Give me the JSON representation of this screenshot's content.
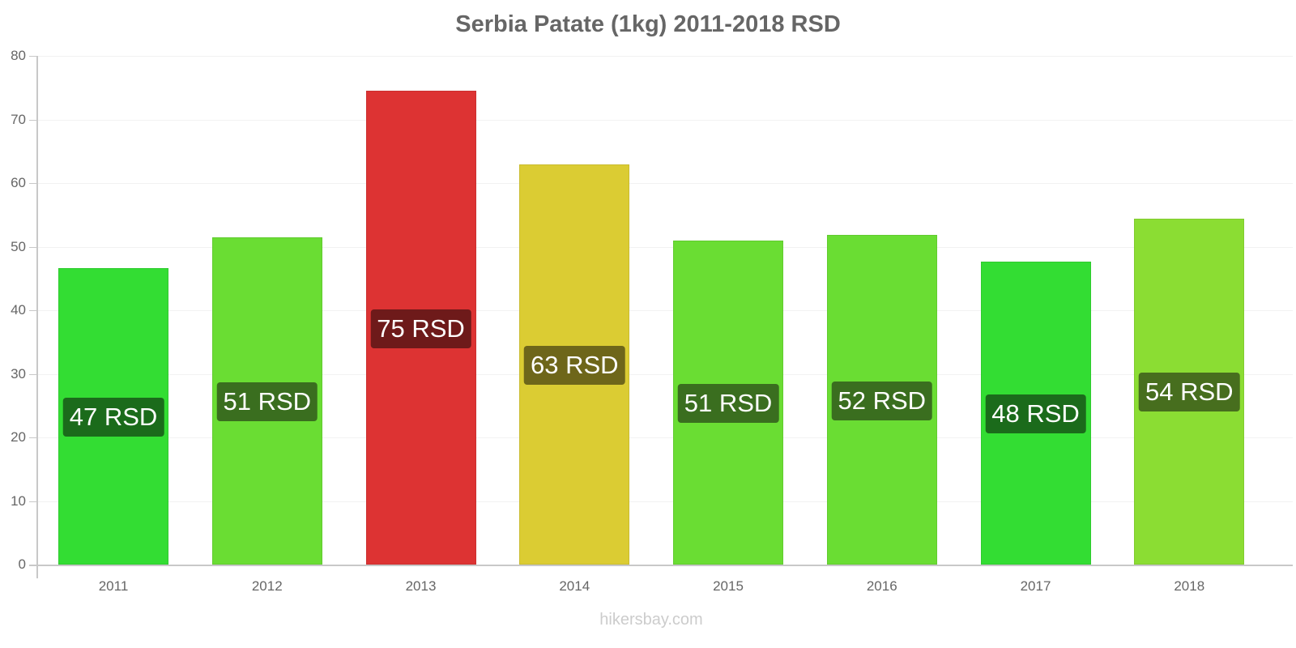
{
  "chart_data": {
    "type": "bar",
    "title": "Serbia Patate (1kg) 2011-2018 RSD",
    "xlabel": "",
    "ylabel": "",
    "ylim": [
      0,
      80
    ],
    "yticks": [
      0,
      10,
      20,
      30,
      40,
      50,
      60,
      70,
      80
    ],
    "grid": true,
    "legend": null,
    "categories": [
      "2011",
      "2012",
      "2013",
      "2014",
      "2015",
      "2016",
      "2017",
      "2018"
    ],
    "values": [
      46.6,
      51.5,
      74.5,
      62.9,
      51.0,
      51.8,
      47.6,
      54.4
    ],
    "data_labels": [
      "47 RSD",
      "51 RSD",
      "75 RSD",
      "63 RSD",
      "51 RSD",
      "52 RSD",
      "48 RSD",
      "54 RSD"
    ],
    "bar_colors": [
      "#33dd33",
      "#6add33",
      "#dd3333",
      "#dbcc33",
      "#6add33",
      "#6add33",
      "#33dd33",
      "#8bdd33"
    ],
    "label_colors": [
      "#1b6b1b",
      "#3a6e1f",
      "#6e1a1a",
      "#6e661a",
      "#3a6e1f",
      "#3a6e1f",
      "#1b6b1b",
      "#476e1e"
    ]
  },
  "watermark": "hikersbay.com"
}
